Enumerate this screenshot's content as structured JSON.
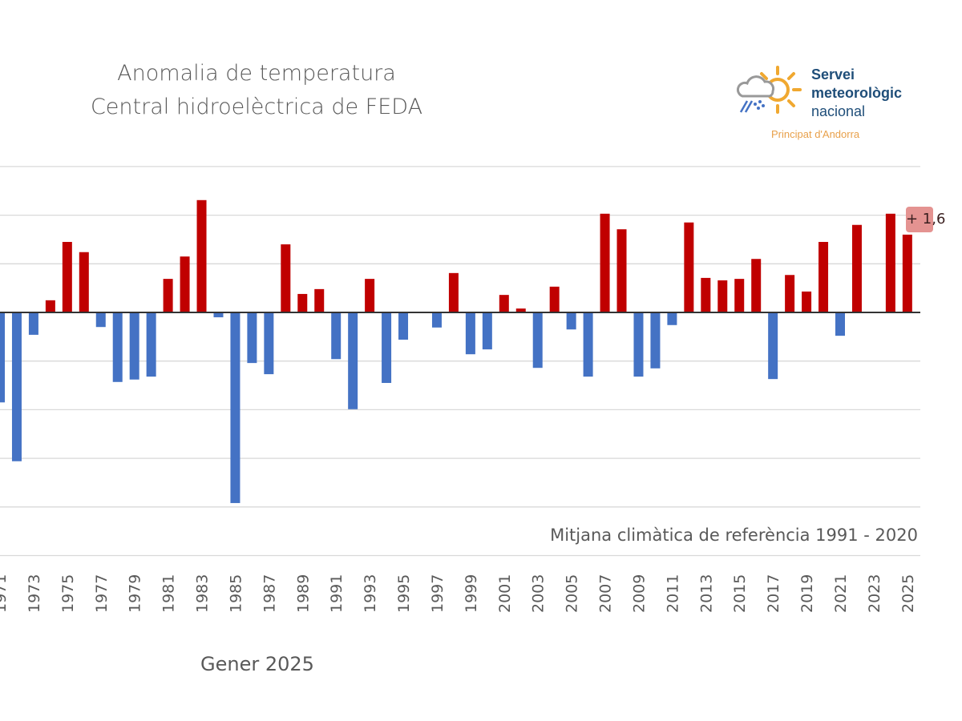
{
  "chart_data": {
    "type": "bar",
    "title": "Anomalia de temperatura",
    "subtitle": "Central hidroelèctrica de FEDA",
    "xlabel": "Gener 2025",
    "note": "Mitjana climàtica de referència 1991 - 2020",
    "annotation": "+ 1,6",
    "ylim": [
      -5,
      3
    ],
    "grid": true,
    "colors": {
      "positive": "#c00000",
      "negative": "#4472c4"
    },
    "categories": [
      1971,
      1972,
      1973,
      1974,
      1975,
      1976,
      1977,
      1978,
      1979,
      1980,
      1981,
      1982,
      1983,
      1984,
      1985,
      1986,
      1987,
      1988,
      1989,
      1990,
      1991,
      1992,
      1993,
      1994,
      1995,
      1996,
      1997,
      1998,
      1999,
      2000,
      2001,
      2002,
      2003,
      2004,
      2005,
      2006,
      2007,
      2008,
      2009,
      2010,
      2011,
      2012,
      2013,
      2014,
      2015,
      2016,
      2017,
      2018,
      2019,
      2020,
      2021,
      2022,
      2023,
      2024,
      2025
    ],
    "values": [
      -1.85,
      -3.06,
      -0.46,
      0.25,
      1.45,
      1.24,
      -0.3,
      -1.43,
      -1.38,
      -1.32,
      0.69,
      1.15,
      2.31,
      -0.1,
      -3.92,
      -1.04,
      -1.27,
      1.4,
      0.38,
      0.48,
      -0.96,
      -1.99,
      0.69,
      -1.45,
      -0.56,
      0,
      -0.31,
      0.81,
      -0.86,
      -0.76,
      0.36,
      0.08,
      -1.14,
      0.53,
      -0.35,
      -1.32,
      2.03,
      1.71,
      -1.32,
      -1.15,
      -0.26,
      1.85,
      0.71,
      0.66,
      0.69,
      1.1,
      -1.37,
      0.77,
      0.43,
      1.45,
      -0.48,
      1.8,
      0,
      2.03,
      1.6
    ],
    "tick_labels": [
      "1971",
      "1973",
      "1975",
      "1977",
      "1979",
      "1981",
      "1983",
      "1985",
      "1987",
      "1989",
      "1991",
      "1993",
      "1995",
      "1997",
      "1999",
      "2001",
      "2003",
      "2005",
      "2007",
      "2009",
      "2011",
      "2013",
      "2015",
      "2017",
      "2019",
      "2021",
      "2023",
      "2025"
    ]
  },
  "logo": {
    "line1": "Servei",
    "line2": "meteorològic",
    "line3": "nacional",
    "tagline": "Principat d'Andorra"
  }
}
